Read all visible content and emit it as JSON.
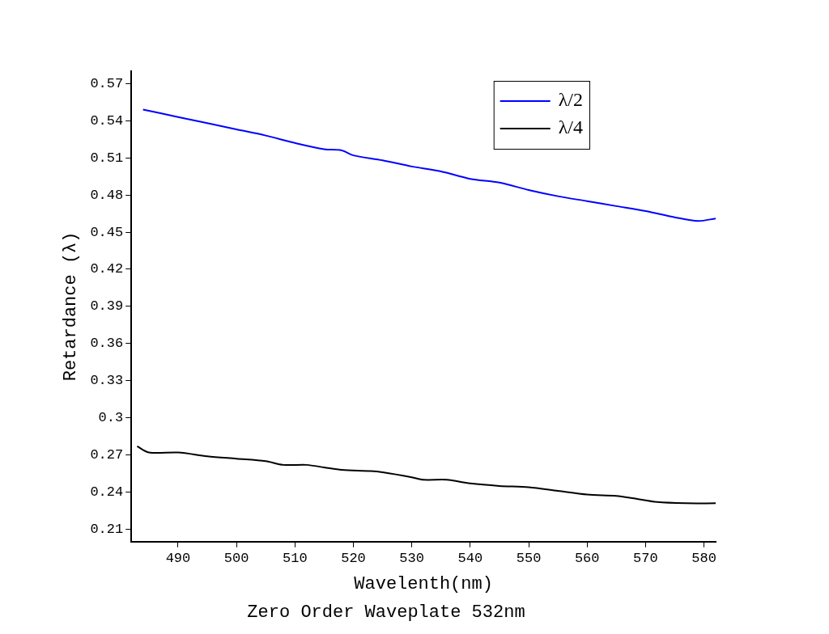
{
  "chart_data": {
    "type": "line",
    "title": "Zero Order Waveplate 532nm",
    "x_label": "Wavelenth(nm)",
    "y_label": "Retardance (λ)",
    "xlim": [
      482,
      582
    ],
    "xticks": [
      490,
      500,
      510,
      520,
      530,
      540,
      550,
      560,
      570,
      580
    ],
    "ylim": [
      0.2,
      0.58
    ],
    "yticks": [
      0.21,
      0.24,
      0.27,
      0.3,
      0.33,
      0.36,
      0.39,
      0.42,
      0.45,
      0.48,
      0.51,
      0.54,
      0.57
    ],
    "grid": false,
    "legend": "upper right",
    "series": [
      {
        "name": "λ/2",
        "color": "#0000ff",
        "x": [
          484,
          490,
          500,
          505,
          510,
          515,
          518,
          520,
          525,
          530,
          535,
          540,
          545,
          550,
          555,
          560,
          565,
          570,
          575,
          579,
          582
        ],
        "values": [
          0.549,
          0.543,
          0.533,
          0.528,
          0.522,
          0.517,
          0.516,
          0.512,
          0.508,
          0.503,
          0.499,
          0.493,
          0.49,
          0.484,
          0.479,
          0.475,
          0.471,
          0.467,
          0.462,
          0.459,
          0.461
        ]
      },
      {
        "name": "λ/4",
        "color": "#000000",
        "x": [
          483,
          485,
          490,
          495,
          500,
          505,
          508,
          512,
          515,
          518,
          523,
          525,
          530,
          532,
          536,
          540,
          545,
          550,
          555,
          560,
          565,
          568,
          572,
          577,
          582
        ],
        "values": [
          0.277,
          0.272,
          0.272,
          0.269,
          0.267,
          0.265,
          0.262,
          0.262,
          0.26,
          0.258,
          0.257,
          0.256,
          0.252,
          0.25,
          0.25,
          0.247,
          0.245,
          0.244,
          0.241,
          0.238,
          0.237,
          0.235,
          0.232,
          0.231,
          0.231
        ]
      }
    ]
  }
}
